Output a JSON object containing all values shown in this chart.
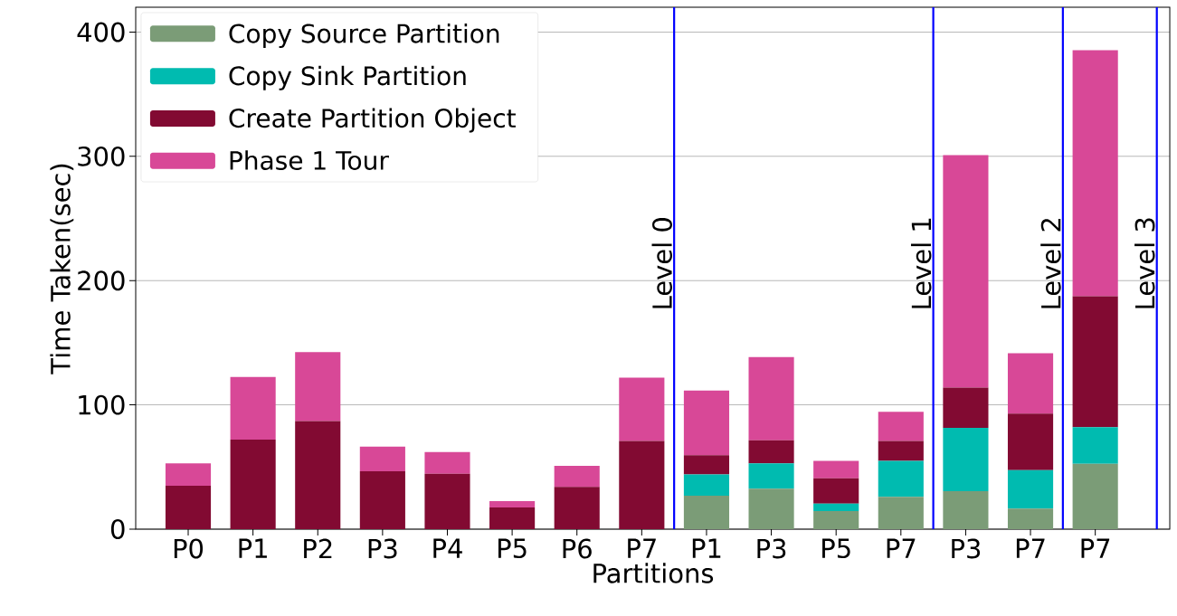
{
  "chart_data": {
    "type": "bar",
    "stacked": true,
    "xlabel": "Partitions",
    "ylabel": "Time Taken(sec)",
    "categories": [
      "P0",
      "P1",
      "P2",
      "P3",
      "P4",
      "P5",
      "P6",
      "P7",
      "P1",
      "P3",
      "P5",
      "P7",
      "P3",
      "P7",
      "P7"
    ],
    "series": [
      {
        "name": "Copy Source Partition",
        "color": "#7b9c77",
        "values": [
          0,
          0,
          0,
          0,
          0,
          0,
          0,
          0,
          27,
          32.5,
          14.5,
          26,
          30.5,
          16.5,
          52.5
        ]
      },
      {
        "name": "Copy Sink Partition",
        "color": "#00bbb0",
        "values": [
          0,
          0,
          0,
          0,
          0,
          0,
          0,
          0,
          17,
          20.5,
          6,
          29,
          51,
          31,
          29.5
        ]
      },
      {
        "name": "Create Partition Object",
        "color": "#820a32",
        "values": [
          35,
          72,
          87,
          46.5,
          44.5,
          17.5,
          34,
          71,
          15.5,
          18.5,
          20.5,
          16,
          32.5,
          45.5,
          105.5
        ]
      },
      {
        "name": "Phase 1 Tour",
        "color": "#d84897",
        "values": [
          18,
          50.5,
          55.5,
          20,
          17.5,
          5,
          17,
          51,
          52,
          67,
          14,
          23.5,
          187,
          48.5,
          198
        ]
      }
    ],
    "ylim": [
      0,
      420
    ],
    "yticks": [
      0,
      100,
      200,
      300,
      400
    ],
    "grid": "y",
    "legend": "top left",
    "annotations": [
      "Level 0",
      "Level 1",
      "Level 2",
      "Level 3"
    ]
  }
}
